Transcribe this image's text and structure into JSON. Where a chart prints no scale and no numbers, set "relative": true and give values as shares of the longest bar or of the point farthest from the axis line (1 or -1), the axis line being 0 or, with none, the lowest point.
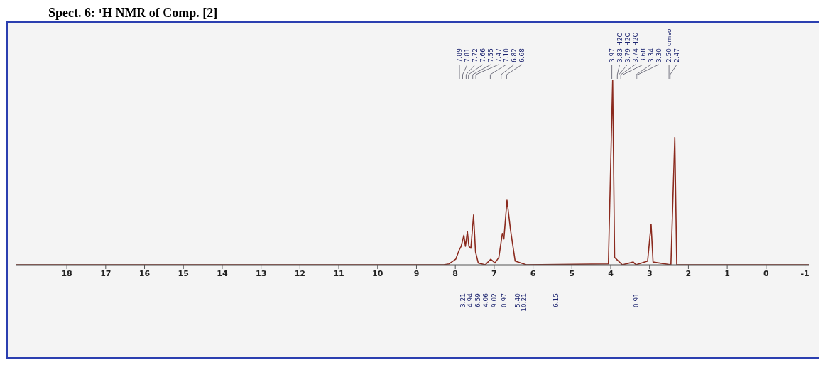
{
  "chart_data": {
    "type": "line",
    "title": "Spect. 6: ¹H NMR  of  Comp. [2]",
    "relative": true,
    "x": [
      19.3,
      8.3,
      8.16,
      7.99,
      7.9,
      7.85,
      7.78,
      7.74,
      7.69,
      7.65,
      7.6,
      7.53,
      7.48,
      7.41,
      7.23,
      7.09,
      6.98,
      6.88,
      6.79,
      6.75,
      6.67,
      6.58,
      6.46,
      6.17,
      4.06,
      3.95,
      3.9,
      3.7,
      3.42,
      3.35,
      3.05,
      2.96,
      2.91,
      2.45,
      2.35,
      2.3,
      -1.1
    ],
    "series": [
      {
        "color": "#8b2a1e",
        "values": [
          0,
          0,
          0.005,
          0.03,
          0.08,
          0.1,
          0.16,
          0.1,
          0.18,
          0.1,
          0.09,
          0.27,
          0.07,
          0.01,
          0,
          0.03,
          0.01,
          0.04,
          0.17,
          0.14,
          0.35,
          0.19,
          0.02,
          0,
          0.005,
          1,
          0.04,
          0,
          0.015,
          0,
          0.02,
          0.22,
          0.015,
          0,
          0.69,
          0,
          0
        ]
      }
    ],
    "xlim": [
      19.3,
      -1.1
    ],
    "xticks": [
      18,
      17,
      16,
      15,
      14,
      13,
      12,
      11,
      10,
      9,
      8,
      7,
      6,
      5,
      4,
      3,
      2,
      1,
      0,
      -1
    ],
    "grid": false,
    "legend": false,
    "annotations": [
      "7.89",
      "7.81",
      "7.72",
      "7.66",
      "7.55",
      "7.47",
      "7.10",
      "6.82",
      "6.68",
      "3.97",
      "3.83 H2O",
      "3.79 H2O",
      "3.74 H2O",
      "3.68",
      "3.34",
      "3.30",
      "2.50 dmso",
      "2.47",
      "3.21",
      "4.94",
      "6.59",
      "4.06",
      "9.02",
      "0.97",
      "5.40",
      "10.21",
      "6.15",
      "0.91"
    ]
  }
}
